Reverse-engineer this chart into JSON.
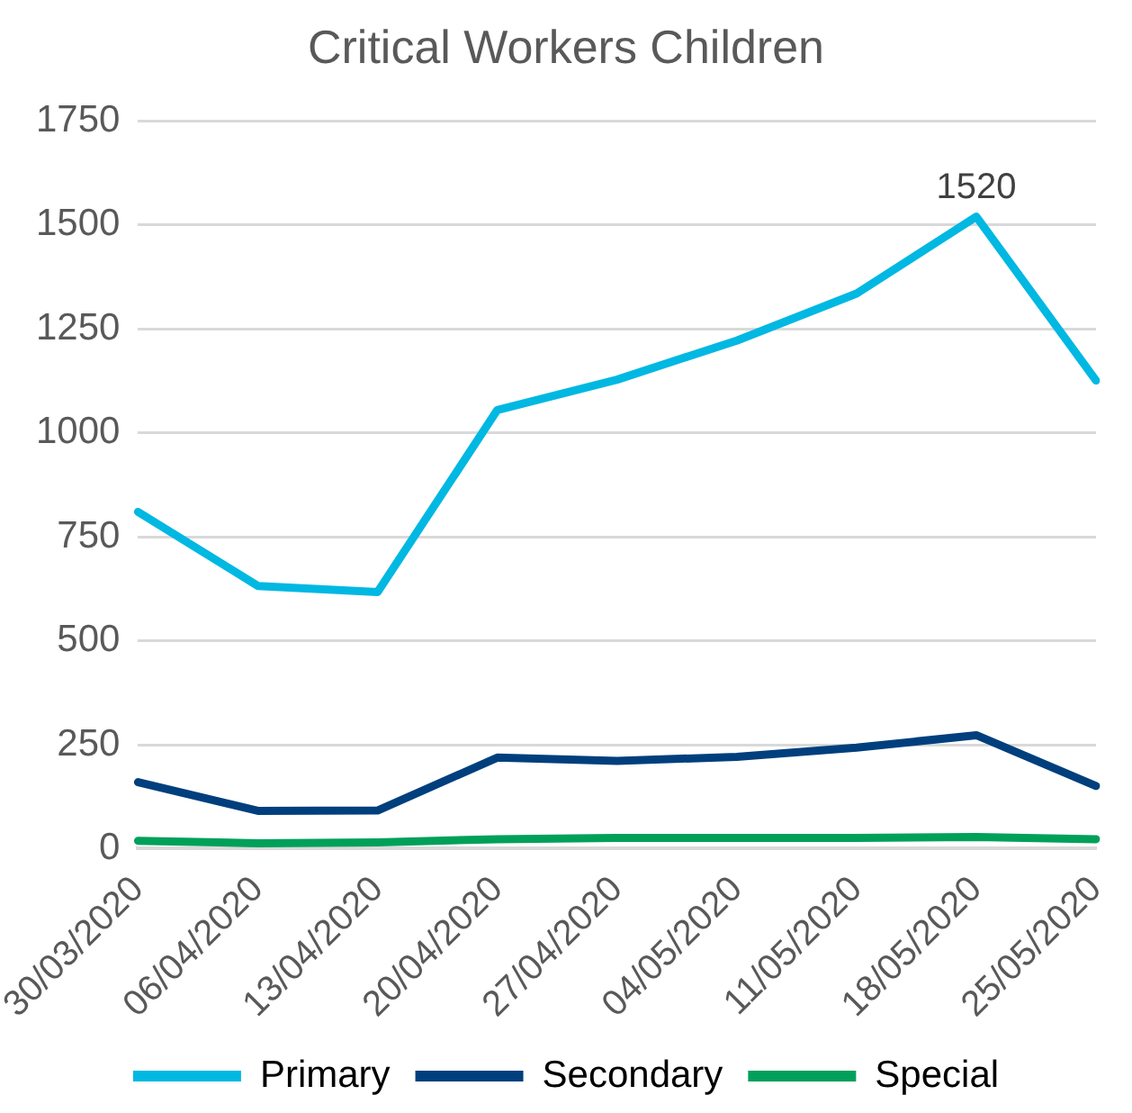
{
  "chart_data": {
    "type": "line",
    "title": "Critical Workers Children",
    "categories": [
      "30/03/2020",
      "06/04/2020",
      "13/04/2020",
      "20/04/2020",
      "27/04/2020",
      "04/05/2020",
      "11/05/2020",
      "18/05/2020",
      "25/05/2020"
    ],
    "series": [
      {
        "name": "Primary",
        "color": "#00b8e2",
        "values": [
          810,
          632,
          617,
          1055,
          1128,
          1222,
          1335,
          1520,
          1126
        ],
        "value_labels": [
          null,
          null,
          null,
          null,
          null,
          null,
          null,
          "1520",
          null
        ]
      },
      {
        "name": "Secondary",
        "color": "#003f7d",
        "values": [
          160,
          91,
          92,
          219,
          211,
          221,
          243,
          273,
          151
        ]
      },
      {
        "name": "Special",
        "color": "#00a05a",
        "values": [
          19,
          13,
          15,
          23,
          26,
          26,
          26,
          28,
          23
        ]
      }
    ],
    "ylim": [
      0,
      1750
    ],
    "yticks": [
      0,
      250,
      500,
      750,
      1000,
      1250,
      1500,
      1750
    ],
    "grid": "y",
    "legend": "bottom",
    "marker": "none",
    "line_style": "solid"
  }
}
